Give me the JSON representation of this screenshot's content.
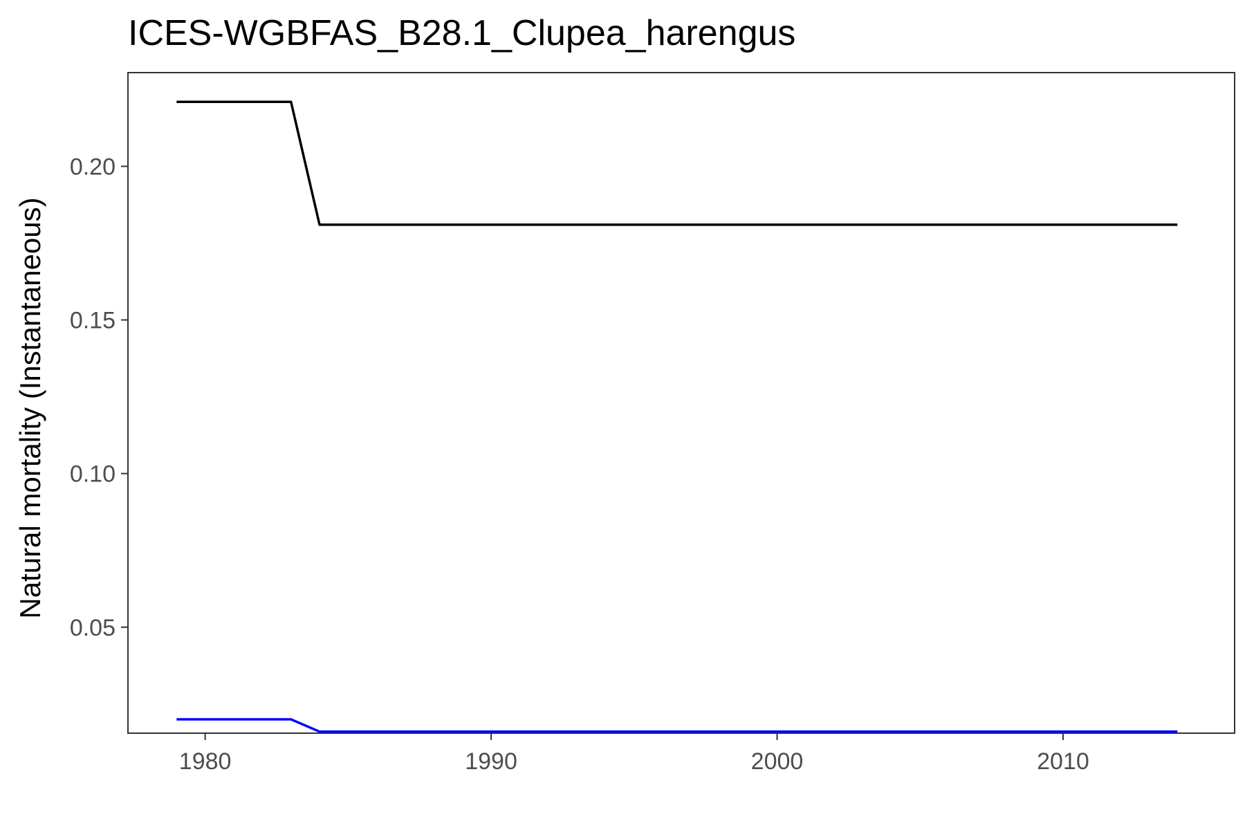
{
  "chart_data": {
    "type": "line",
    "title": "ICES-WGBFAS_B28.1_Clupea_harengus",
    "xlabel": "",
    "ylabel": "Natural mortality (Instantaneous)",
    "xlim": [
      1977.3,
      2016.0
    ],
    "ylim": [
      0.0155,
      0.2305
    ],
    "x_ticks": [
      1980,
      1990,
      2000,
      2010
    ],
    "x_tick_labels": [
      "1980",
      "1990",
      "2000",
      "2010"
    ],
    "y_ticks": [
      0.05,
      0.1,
      0.15,
      0.2
    ],
    "y_tick_labels": [
      "0.05",
      "0.10",
      "0.15",
      "0.20"
    ],
    "grid": false,
    "series": [
      {
        "color": "#000000",
        "x": [
          1979,
          1983,
          1984,
          2014
        ],
        "values": [
          0.221,
          0.221,
          0.181,
          0.181
        ]
      },
      {
        "color": "#0000ff",
        "x": [
          1979,
          1983,
          1984,
          2014
        ],
        "values": [
          0.02,
          0.02,
          0.016,
          0.016
        ]
      }
    ]
  }
}
